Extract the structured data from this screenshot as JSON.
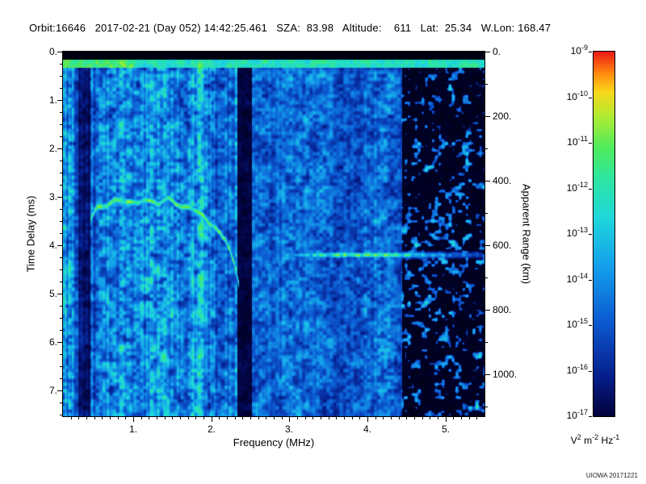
{
  "header": {
    "text": "Orbit:16646   2017-02-21 (Day 052) 14:42:25.461   SZA:  83.98   Altitude:    611   Lat:  25.34   W.Lon: 168.47"
  },
  "credit": "UIOWA 20171221",
  "chart_data": {
    "type": "heatmap",
    "xlabel": "Frequency (MHz)",
    "ylabel": "Time Delay (ms)",
    "ylabel_right": "Apparent Range (km)",
    "x_range": [
      0.1,
      5.5
    ],
    "y_range_ms": [
      0.0,
      7.53
    ],
    "km_per_ms": 150,
    "x_ticks": [
      {
        "v": 1.0,
        "label": "1."
      },
      {
        "v": 2.0,
        "label": "2."
      },
      {
        "v": 3.0,
        "label": "3."
      },
      {
        "v": 4.0,
        "label": "4."
      },
      {
        "v": 5.0,
        "label": "5."
      }
    ],
    "x_minor_step": 0.1,
    "y_ticks": [
      {
        "v": 0,
        "label": "0."
      },
      {
        "v": 1,
        "label": "1."
      },
      {
        "v": 2,
        "label": "2."
      },
      {
        "v": 3,
        "label": "3."
      },
      {
        "v": 4,
        "label": "4."
      },
      {
        "v": 5,
        "label": "5."
      },
      {
        "v": 6,
        "label": "6."
      },
      {
        "v": 7,
        "label": "7."
      }
    ],
    "y_minor_step": 0.25,
    "range_ticks": [
      {
        "km": 0,
        "label": "0."
      },
      {
        "km": 200,
        "label": "200."
      },
      {
        "km": 400,
        "label": "400."
      },
      {
        "km": 600,
        "label": "600."
      },
      {
        "km": 800,
        "label": "800."
      },
      {
        "km": 1000,
        "label": "1000."
      }
    ],
    "range_minor_step_km": 100,
    "colorbar": {
      "tick_base": "10",
      "tick_exponents": [
        "-9",
        "-10",
        "-11",
        "-12",
        "-13",
        "-14",
        "-15",
        "-16",
        "-17"
      ],
      "unit_parts": [
        {
          "base": "V",
          "exp": "2"
        },
        {
          "base": "m",
          "exp": "-2"
        },
        {
          "base": "Hz",
          "exp": "-1"
        }
      ]
    },
    "colormap_stops": [
      [
        0.0,
        [
          0,
          0,
          6
        ]
      ],
      [
        0.08,
        [
          2,
          2,
          60
        ]
      ],
      [
        0.18,
        [
          6,
          30,
          140
        ]
      ],
      [
        0.32,
        [
          12,
          90,
          210
        ]
      ],
      [
        0.46,
        [
          20,
          160,
          235
        ]
      ],
      [
        0.58,
        [
          30,
          215,
          220
        ]
      ],
      [
        0.68,
        [
          45,
          230,
          160
        ]
      ],
      [
        0.76,
        [
          80,
          235,
          90
        ]
      ],
      [
        0.84,
        [
          180,
          235,
          50
        ]
      ],
      [
        0.9,
        [
          250,
          215,
          25
        ]
      ],
      [
        0.95,
        [
          255,
          130,
          15
        ]
      ],
      [
        1.0,
        [
          235,
          25,
          20
        ]
      ]
    ],
    "noise_seed": 20171221,
    "features": {
      "top_black_ms": 0.17,
      "top_band_end_ms": 0.34,
      "regions": {
        "left_max_f": 2.33,
        "mid_max_f": 4.45
      },
      "dark_bands": [
        {
          "f0": 0.3,
          "f1": 0.45,
          "mult": 0.4
        },
        {
          "f0": 2.33,
          "f1": 2.52,
          "mult": 0.25
        }
      ],
      "bright_verticals": [
        {
          "f": 0.135,
          "sigma": 0.02,
          "amp": 0.6
        },
        {
          "f": 0.225,
          "sigma": 0.018,
          "amp": 0.55
        }
      ],
      "ionosphere_trace": [
        [
          0.45,
          3.5
        ],
        [
          0.55,
          3.25
        ],
        [
          0.7,
          3.15
        ],
        [
          0.9,
          3.08
        ],
        [
          1.1,
          3.04
        ],
        [
          1.3,
          3.06
        ],
        [
          1.5,
          3.1
        ],
        [
          1.7,
          3.22
        ],
        [
          1.9,
          3.38
        ],
        [
          2.05,
          3.6
        ],
        [
          2.2,
          3.95
        ],
        [
          2.3,
          4.4
        ],
        [
          2.36,
          4.8
        ]
      ],
      "trace_sigma_ms": 0.09,
      "secondary_trace": [
        [
          0.85,
          3.78
        ],
        [
          1.05,
          3.7
        ],
        [
          1.25,
          3.68
        ],
        [
          1.45,
          3.75
        ],
        [
          1.6,
          3.92
        ]
      ],
      "ground_echo": {
        "t_ms": 4.2,
        "f_start": 2.85,
        "f_end": 5.48,
        "center_f": 3.95,
        "width_f": 1.15,
        "sigma_ms": 0.07
      }
    }
  }
}
